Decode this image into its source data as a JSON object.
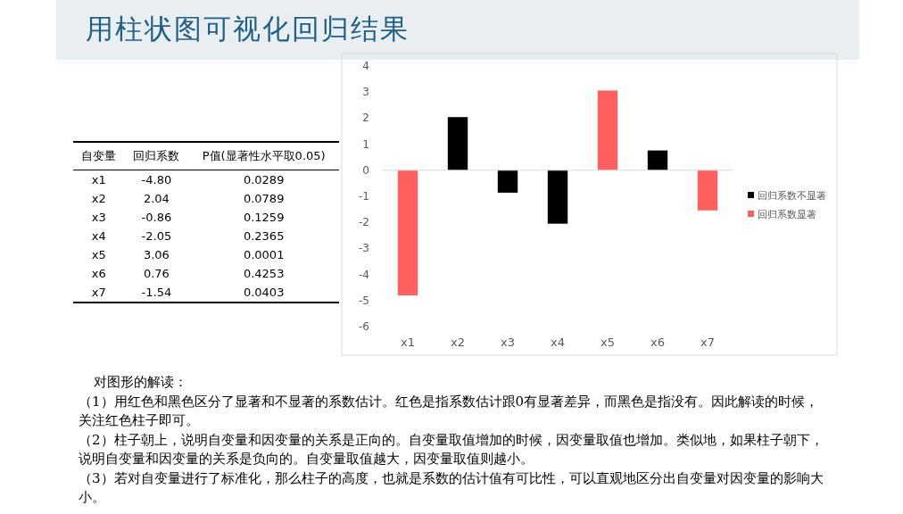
{
  "chart_data": {
    "type": "bar",
    "title": "用柱状图可视化回归结果",
    "categories": [
      "x1",
      "x2",
      "x3",
      "x4",
      "x5",
      "x6",
      "x7"
    ],
    "series": [
      {
        "name": "回归系数不显著",
        "color": "#000000",
        "values": [
          null,
          2.04,
          -0.86,
          -2.05,
          null,
          0.76,
          null
        ]
      },
      {
        "name": "回归系数显著",
        "color": "#ff5f5f",
        "values": [
          -4.8,
          null,
          null,
          null,
          3.06,
          null,
          -1.54
        ]
      }
    ],
    "ylim": [
      -6,
      4
    ],
    "yticks": [
      -6,
      -5,
      -4,
      -3,
      -2,
      -1,
      0,
      1,
      2,
      3,
      4
    ],
    "legend": "right",
    "annotations": [
      "自变量",
      "回归系数",
      "P值(显著性水平取0.05)",
      "-4.80",
      "2.04",
      "-0.86",
      "-2.05",
      "3.06",
      "0.76",
      "-1.54",
      "0.0289",
      "0.0789",
      "0.1259",
      "0.2365",
      "0.0001",
      "0.4253",
      "0.0403",
      "对图形的解读：",
      "（1）用红色和黑色区分了显著和不显著的系数估计。红色是指系数估计跟0有显著差异，而黑色是指没有。因此解读的时候，关注红色柱子即可。",
      "（2）柱子朝上，说明自变量和因变量的关系是正向的。自变量取值增加的时候，因变量取值也增加。类似地，如果柱子朝下，说明自变量和因变量的关系是负向的。自变量取值越大，因变量取值则越小。",
      "（3）若对自变量进行了标准化，那么柱子的高度，也就是系数的估计值有可比性，可以直观地区分出自变量对因变量的影响大小。"
    ]
  }
}
